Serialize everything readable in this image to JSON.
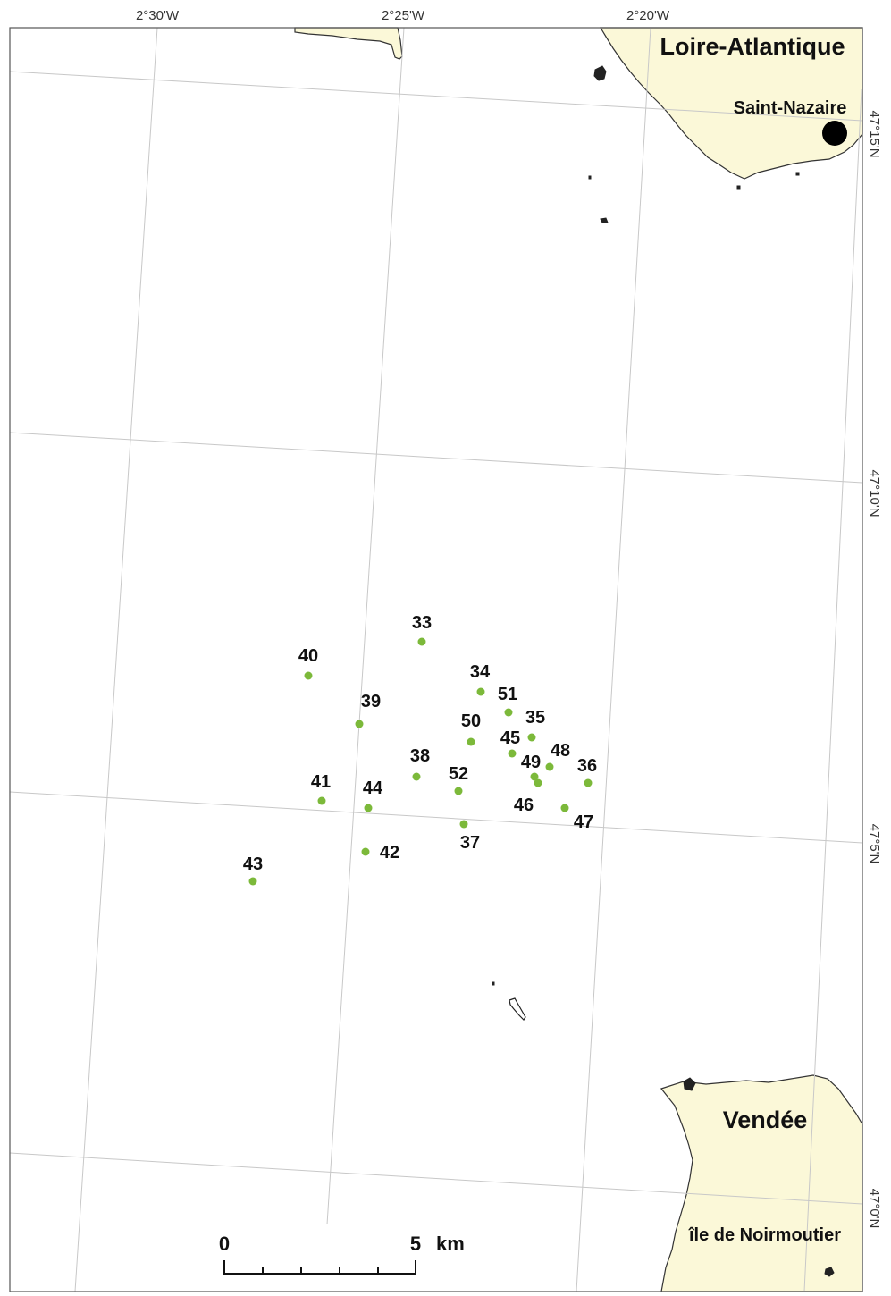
{
  "map": {
    "graticule": {
      "longitude_labels": [
        "2°30'W",
        "2°25'W",
        "2°20'W"
      ],
      "latitude_labels": [
        "47°15'N",
        "47°10'N",
        "47°5'N",
        "47°0'N"
      ]
    },
    "regions": {
      "north": "Loire-Atlantique",
      "south": "Vendée"
    },
    "places": {
      "city": "Saint-Nazaire",
      "island": "île de Noirmoutier"
    },
    "sites": [
      {
        "id": "33"
      },
      {
        "id": "34"
      },
      {
        "id": "35"
      },
      {
        "id": "36"
      },
      {
        "id": "37"
      },
      {
        "id": "38"
      },
      {
        "id": "39"
      },
      {
        "id": "40"
      },
      {
        "id": "41"
      },
      {
        "id": "42"
      },
      {
        "id": "43"
      },
      {
        "id": "44"
      },
      {
        "id": "45"
      },
      {
        "id": "46"
      },
      {
        "id": "47"
      },
      {
        "id": "48"
      },
      {
        "id": "49"
      },
      {
        "id": "50"
      },
      {
        "id": "51"
      },
      {
        "id": "52"
      }
    ],
    "scale_bar": {
      "start": "0",
      "end": "5",
      "unit": "km"
    },
    "colors": {
      "land": "#fbf8d8",
      "site_points": "#7cb93a",
      "grid": "#c8c8c8"
    }
  }
}
